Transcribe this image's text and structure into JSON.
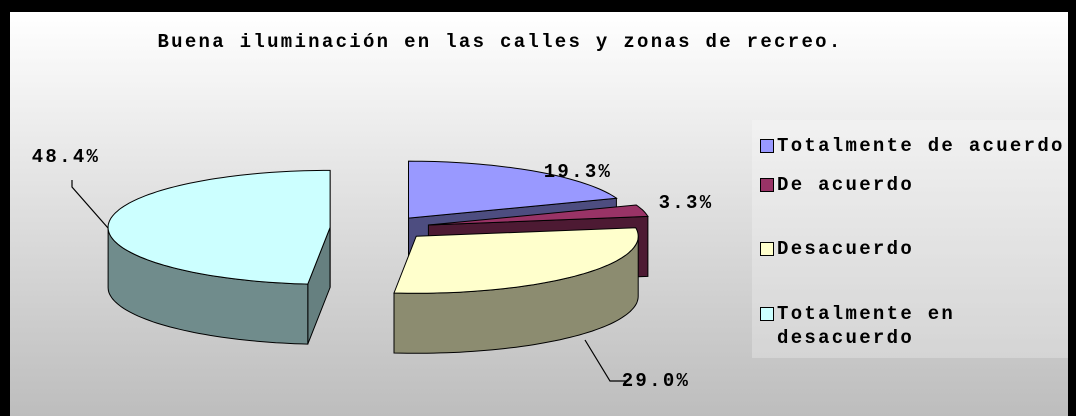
{
  "chart_data": {
    "type": "pie",
    "title": "Buena iluminación en las calles y zonas de recreo.",
    "categories": [
      "Totalmente de acuerdo",
      "De acuerdo",
      "Desacuerdo",
      "Totalmente en desacuerdo"
    ],
    "values": [
      19.3,
      3.3,
      29.0,
      48.4
    ],
    "value_labels": [
      "19.3%",
      "3.3%",
      "29.0%",
      "48.4%"
    ],
    "colors": [
      "#9999ff",
      "#993366",
      "#ffffcc",
      "#ccffff"
    ],
    "legend": "right"
  }
}
